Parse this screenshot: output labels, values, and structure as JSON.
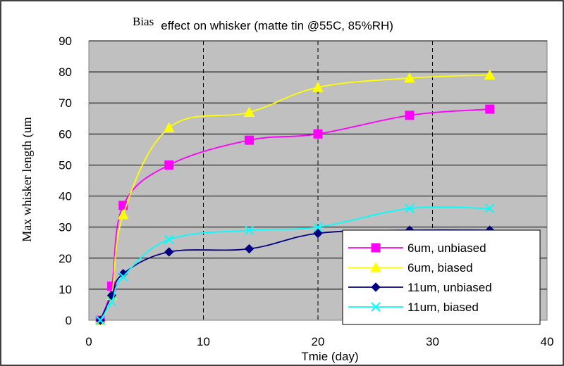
{
  "chart_data": {
    "type": "line",
    "title_part1": "Bias",
    "title_part2": "effect on whisker (matte tin @55C, 85%RH)",
    "xlabel": "Tmie (day)",
    "ylabel": "Max whisker length (um",
    "xlim": [
      0,
      40
    ],
    "ylim": [
      0,
      90
    ],
    "x_ticks": [
      0,
      10,
      20,
      30,
      40
    ],
    "y_ticks": [
      0,
      10,
      20,
      30,
      40,
      50,
      60,
      70,
      80,
      90
    ],
    "grid": "horizontal solid, vertical dashed",
    "legend_position": "bottom-right",
    "plot_background": "#c0c0c0",
    "series": [
      {
        "name": "6um, unbiased",
        "color": "#ff00ff",
        "marker": "square",
        "x": [
          1,
          2,
          3,
          7,
          14,
          20,
          28,
          35
        ],
        "y": [
          0,
          11,
          37,
          50,
          58,
          60,
          66,
          68
        ]
      },
      {
        "name": "6um, biased",
        "color": "#ffff00",
        "marker": "triangle",
        "x": [
          1,
          2,
          3,
          7,
          14,
          20,
          28,
          35
        ],
        "y": [
          0,
          8,
          34,
          62,
          67,
          75,
          78,
          79
        ]
      },
      {
        "name": "11um, unbiased",
        "color": "#000080",
        "marker": "diamond",
        "x": [
          1,
          2,
          3,
          7,
          14,
          20,
          28,
          35
        ],
        "y": [
          0,
          8,
          15,
          22,
          23,
          28,
          29,
          29
        ]
      },
      {
        "name": "11um, biased",
        "color": "#00ffff",
        "marker": "x",
        "x": [
          1,
          2,
          3,
          7,
          14,
          20,
          28,
          35
        ],
        "y": [
          0,
          6,
          14,
          26,
          29,
          30,
          36,
          36
        ]
      }
    ]
  }
}
